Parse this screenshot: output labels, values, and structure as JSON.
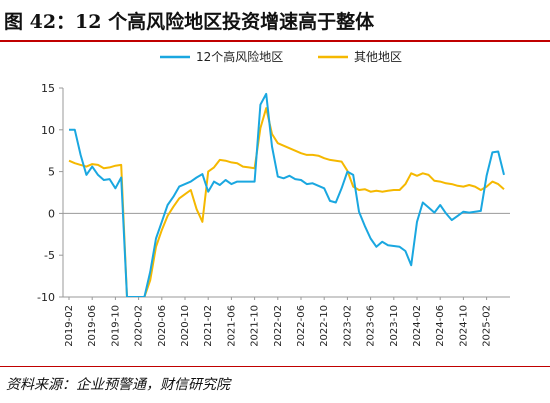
{
  "figure": {
    "title": "图 42：12 个高风险地区投资增速高于整体",
    "source": "资料来源：企业预警通，财信研究院"
  },
  "colors": {
    "high_risk": "#1aa7e0",
    "others": "#f5b800",
    "axis": "#999999",
    "accent_rule": "#c00000"
  },
  "chart_data": {
    "type": "line",
    "ylim": [
      -10,
      15
    ],
    "yticks": [
      15,
      10,
      5,
      0,
      -5,
      -10
    ],
    "legend": {
      "placement": "top-center"
    },
    "grid": false,
    "x": [
      "2019-02",
      "2019-03",
      "2019-04",
      "2019-05",
      "2019-06",
      "2019-07",
      "2019-08",
      "2019-09",
      "2019-10",
      "2019-11",
      "2019-12",
      "2020-01",
      "2020-02",
      "2020-03",
      "2020-04",
      "2020-05",
      "2020-06",
      "2020-07",
      "2020-08",
      "2020-09",
      "2020-10",
      "2020-11",
      "2020-12",
      "2021-01",
      "2021-02",
      "2021-03",
      "2021-04",
      "2021-05",
      "2021-06",
      "2021-07",
      "2021-08",
      "2021-09",
      "2021-10",
      "2021-11",
      "2021-12",
      "2022-01",
      "2022-02",
      "2022-03",
      "2022-04",
      "2022-05",
      "2022-06",
      "2022-07",
      "2022-08",
      "2022-09",
      "2022-10",
      "2022-11",
      "2022-12",
      "2023-01",
      "2023-02",
      "2023-03",
      "2023-04",
      "2023-05",
      "2023-06",
      "2023-07",
      "2023-08",
      "2023-09",
      "2023-10",
      "2023-11",
      "2023-12",
      "2024-01",
      "2024-02",
      "2024-03",
      "2024-04",
      "2024-05",
      "2024-06",
      "2024-07",
      "2024-08",
      "2024-09",
      "2024-10",
      "2024-11",
      "2024-12",
      "2025-01",
      "2025-02",
      "2025-03",
      "2025-04",
      "2025-05"
    ],
    "x_tick_labels": [
      "2019-02",
      "2019-06",
      "2019-10",
      "2020-02",
      "2020-06",
      "2020-10",
      "2021-02",
      "2021-06",
      "2021-10",
      "2022-02",
      "2022-06",
      "2022-10",
      "2023-02",
      "2023-06",
      "2023-10",
      "2024-02",
      "2024-06",
      "2024-10",
      "2025-02"
    ],
    "series": [
      {
        "name": "12个高风险地区",
        "key": "high_risk",
        "values": [
          10.0,
          10.0,
          7.0,
          4.6,
          5.6,
          4.6,
          4.0,
          4.1,
          3.0,
          4.3,
          -11,
          -11,
          -11,
          -11,
          -7,
          -3,
          -1,
          1,
          2,
          3.2,
          3.5,
          3.8,
          4.3,
          4.7,
          2.6,
          3.8,
          3.4,
          4.0,
          3.5,
          3.8,
          3.8,
          3.8,
          3.8,
          13.0,
          14.3,
          8.0,
          4.4,
          4.2,
          4.5,
          4.1,
          4.0,
          3.5,
          3.6,
          3.3,
          3.0,
          1.5,
          1.3,
          3.0,
          5.0,
          4.6,
          0.2,
          -1.5,
          -3.0,
          -4.0,
          -3.4,
          -3.8,
          -3.9,
          -4.0,
          -4.5,
          -6.2,
          -1.0,
          1.3,
          0.7,
          0.1,
          1.0,
          0.0,
          -0.8,
          -0.3,
          0.2,
          0.1,
          0.2,
          0.3,
          4.5,
          7.3,
          7.4,
          4.6
        ]
      },
      {
        "name": "其他地区",
        "key": "others",
        "values": [
          6.3,
          6.0,
          5.8,
          5.6,
          5.9,
          5.8,
          5.4,
          5.5,
          5.7,
          5.8,
          -11,
          -11,
          -11,
          -11,
          -8,
          -4,
          -2,
          -0.3,
          0.8,
          1.8,
          2.3,
          2.8,
          0.5,
          -1.0,
          5.0,
          5.5,
          6.4,
          6.3,
          6.1,
          6.0,
          5.6,
          5.5,
          5.4,
          10.2,
          12.6,
          9.5,
          8.4,
          8.1,
          7.8,
          7.5,
          7.2,
          7.0,
          7.0,
          6.9,
          6.6,
          6.4,
          6.3,
          6.2,
          5.1,
          3.2,
          2.8,
          2.9,
          2.6,
          2.7,
          2.6,
          2.7,
          2.8,
          2.8,
          3.5,
          4.8,
          4.5,
          4.8,
          4.6,
          3.9,
          3.8,
          3.6,
          3.5,
          3.3,
          3.2,
          3.4,
          3.2,
          2.8,
          3.2,
          3.8,
          3.5,
          2.9
        ]
      }
    ]
  }
}
